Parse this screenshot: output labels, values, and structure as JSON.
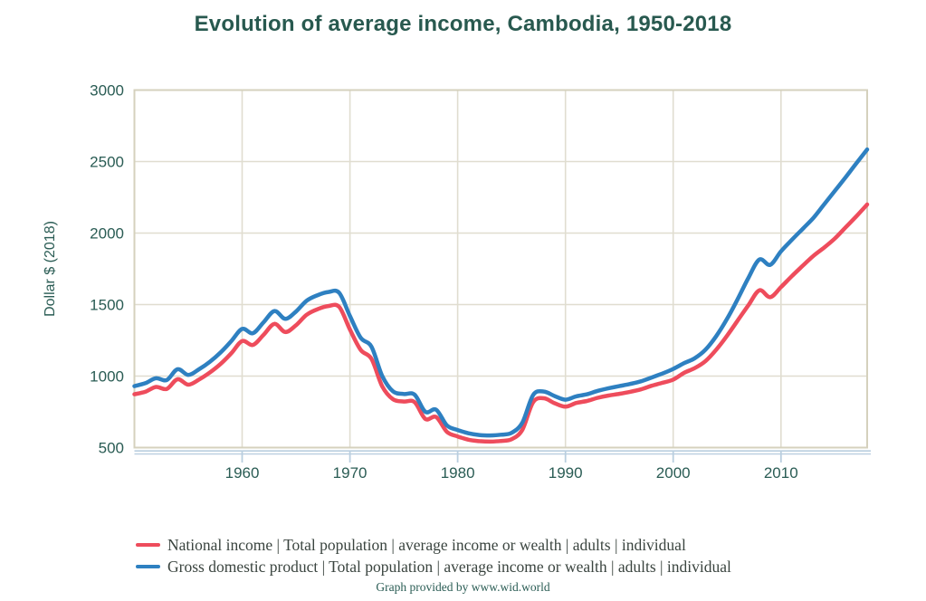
{
  "page": {
    "title": "Evolution of average income, Cambodia, 1950-2018",
    "footer": "Graph provided by www.wid.world"
  },
  "colors": {
    "title_text": "#28594f",
    "axis_label_text": "#2a5c54",
    "legend_text": "#3a443f",
    "gridline": "#e0ddd0",
    "plot_border": "#d5d1bd",
    "x_axis_line": "#b9cedf",
    "national_income_red": "#ee4c5c",
    "gdp_blue": "#2e80c1",
    "background": "#ffffff"
  },
  "chart_data": {
    "type": "line",
    "title": "Evolution of average income, Cambodia, 1950-2018",
    "xlabel": "",
    "ylabel": "Dollar $ (2018)",
    "xlim": [
      1950,
      2018
    ],
    "ylim": [
      500,
      3000
    ],
    "x_ticks": [
      1960,
      1970,
      1980,
      1990,
      2000,
      2010
    ],
    "y_ticks": [
      500,
      1000,
      1500,
      2000,
      2500,
      3000
    ],
    "grid": true,
    "legend_position": "bottom-left",
    "x": [
      1950,
      1951,
      1952,
      1953,
      1954,
      1955,
      1956,
      1957,
      1958,
      1959,
      1960,
      1961,
      1962,
      1963,
      1964,
      1965,
      1966,
      1967,
      1968,
      1969,
      1970,
      1971,
      1972,
      1973,
      1974,
      1975,
      1976,
      1977,
      1978,
      1979,
      1980,
      1981,
      1982,
      1983,
      1984,
      1985,
      1986,
      1987,
      1988,
      1989,
      1990,
      1991,
      1992,
      1993,
      1994,
      1995,
      1996,
      1997,
      1998,
      1999,
      2000,
      2001,
      2002,
      2003,
      2004,
      2005,
      2006,
      2007,
      2008,
      2009,
      2010,
      2011,
      2012,
      2013,
      2014,
      2015,
      2016,
      2017,
      2018
    ],
    "series": [
      {
        "name": "National income | Total population | average income or wealth | adults | individual",
        "color": "#ee4c5c",
        "values": [
          873,
          890,
          924,
          910,
          978,
          940,
          976,
          1025,
          1085,
          1160,
          1245,
          1218,
          1290,
          1365,
          1308,
          1356,
          1430,
          1468,
          1490,
          1484,
          1325,
          1183,
          1120,
          928,
          838,
          822,
          818,
          700,
          714,
          610,
          578,
          555,
          545,
          542,
          546,
          558,
          625,
          818,
          845,
          810,
          786,
          812,
          826,
          848,
          864,
          876,
          890,
          907,
          932,
          953,
          975,
          1022,
          1056,
          1105,
          1185,
          1282,
          1390,
          1498,
          1600,
          1552,
          1622,
          1698,
          1770,
          1840,
          1898,
          1962,
          2040,
          2118,
          2200
        ]
      },
      {
        "name": "Gross domestic product | Total population | average income or wealth | adults | individual",
        "color": "#2e80c1",
        "values": [
          930,
          950,
          985,
          972,
          1048,
          1008,
          1048,
          1100,
          1165,
          1245,
          1330,
          1300,
          1378,
          1455,
          1400,
          1452,
          1528,
          1566,
          1588,
          1582,
          1420,
          1268,
          1205,
          1000,
          893,
          875,
          870,
          750,
          765,
          655,
          623,
          600,
          588,
          585,
          590,
          603,
          675,
          868,
          892,
          860,
          835,
          858,
          873,
          897,
          915,
          930,
          945,
          963,
          990,
          1018,
          1050,
          1090,
          1125,
          1185,
          1280,
          1400,
          1540,
          1690,
          1815,
          1778,
          1872,
          1952,
          2028,
          2105,
          2200,
          2295,
          2390,
          2488,
          2585
        ]
      }
    ]
  }
}
